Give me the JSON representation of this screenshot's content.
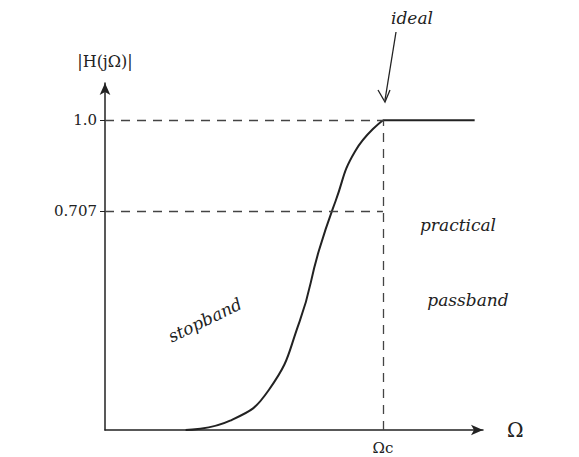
{
  "chart_data": {
    "type": "line",
    "x_label": "Ω",
    "y_label": "|H(jΩ)|",
    "xlim": [
      0,
      1.36
    ],
    "ylim": [
      0,
      1.12
    ],
    "xticks": [
      {
        "value": 1,
        "label": "Ωc"
      }
    ],
    "yticks": [
      0.707,
      {
        "value": 1.0,
        "label": "1.0"
      }
    ],
    "series": [
      {
        "x": [
          0.29,
          0.45,
          0.59,
          0.7,
          0.77,
          0.83,
          0.9,
          1.0
        ],
        "values": [
          0,
          0.03,
          0.13,
          0.35,
          0.58,
          0.74,
          0.9,
          1.0
        ],
        "color": "#222222",
        "line_style": "solid"
      },
      {
        "x": [
          1.0,
          1.33
        ],
        "values": [
          1.0,
          1.0
        ],
        "color": "#222222",
        "line_style": "solid"
      }
    ],
    "annotations": [
      "ideal",
      "practical",
      "passband",
      "stopband"
    ]
  }
}
